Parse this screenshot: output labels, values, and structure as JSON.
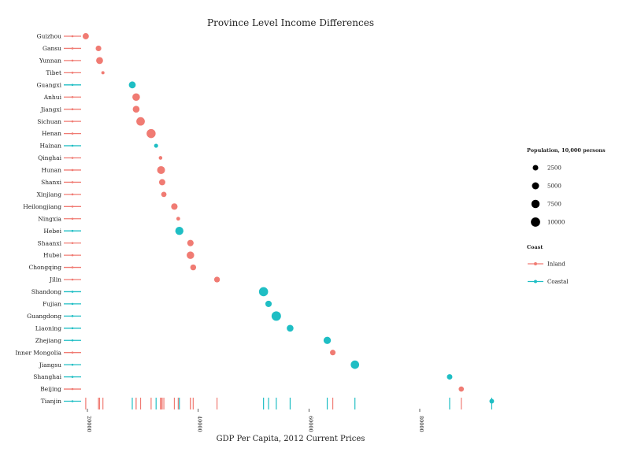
{
  "chart_data": {
    "type": "scatter",
    "title": "Province Level Income Differences",
    "xlabel": "GDP Per Capita, 2012 Current Prices",
    "ylabel": "",
    "xlim": [
      19000,
      89000
    ],
    "x_ticks": [
      20000,
      40000,
      60000,
      80000
    ],
    "x_tick_labels": [
      "20000",
      "40000",
      "60000",
      "80000"
    ],
    "colors": {
      "Inland": "#F07B73",
      "Coastal": "#1FBEC4"
    },
    "legend": {
      "size_title": "Population, 10,000 persons",
      "size_levels": [
        2500,
        5000,
        7500,
        10000
      ],
      "size_labels": [
        "2500",
        "5000",
        "7500",
        "10000"
      ],
      "color_title": "Coast",
      "color_labels": [
        "Inland",
        "Coastal"
      ],
      "placement": "right"
    },
    "provinces": [
      {
        "name": "Guizhou",
        "gdp": 19700,
        "pop": 3480,
        "coast": "Inland"
      },
      {
        "name": "Gansu",
        "gdp": 22000,
        "pop": 2580,
        "coast": "Inland"
      },
      {
        "name": "Yunnan",
        "gdp": 22200,
        "pop": 4660,
        "coast": "Inland"
      },
      {
        "name": "Tibet",
        "gdp": 22800,
        "pop": 310,
        "coast": "Inland"
      },
      {
        "name": "Guangxi",
        "gdp": 28100,
        "pop": 4680,
        "coast": "Coastal"
      },
      {
        "name": "Anhui",
        "gdp": 28800,
        "pop": 5990,
        "coast": "Inland"
      },
      {
        "name": "Jiangxi",
        "gdp": 28800,
        "pop": 4500,
        "coast": "Inland"
      },
      {
        "name": "Sichuan",
        "gdp": 29600,
        "pop": 8080,
        "coast": "Inland"
      },
      {
        "name": "Henan",
        "gdp": 31500,
        "pop": 9410,
        "coast": "Inland"
      },
      {
        "name": "Hainan",
        "gdp": 32400,
        "pop": 880,
        "coast": "Coastal"
      },
      {
        "name": "Qinghai",
        "gdp": 33200,
        "pop": 570,
        "coast": "Inland"
      },
      {
        "name": "Hunan",
        "gdp": 33300,
        "pop": 6640,
        "coast": "Inland"
      },
      {
        "name": "Shanxi",
        "gdp": 33500,
        "pop": 3610,
        "coast": "Inland"
      },
      {
        "name": "Xinjiang",
        "gdp": 33800,
        "pop": 2230,
        "coast": "Inland"
      },
      {
        "name": "Heilongjiang",
        "gdp": 35700,
        "pop": 3830,
        "coast": "Inland"
      },
      {
        "name": "Ningxia",
        "gdp": 36400,
        "pop": 650,
        "coast": "Inland"
      },
      {
        "name": "Hebei",
        "gdp": 36600,
        "pop": 7290,
        "coast": "Coastal"
      },
      {
        "name": "Shaanxi",
        "gdp": 38600,
        "pop": 3750,
        "coast": "Inland"
      },
      {
        "name": "Hubei",
        "gdp": 38600,
        "pop": 5780,
        "coast": "Inland"
      },
      {
        "name": "Chongqing",
        "gdp": 39100,
        "pop": 2950,
        "coast": "Inland"
      },
      {
        "name": "Jilin",
        "gdp": 43400,
        "pop": 2750,
        "coast": "Inland"
      },
      {
        "name": "Shandong",
        "gdp": 51800,
        "pop": 9690,
        "coast": "Coastal"
      },
      {
        "name": "Fujian",
        "gdp": 52700,
        "pop": 3750,
        "coast": "Coastal"
      },
      {
        "name": "Guangdong",
        "gdp": 54100,
        "pop": 10600,
        "coast": "Coastal"
      },
      {
        "name": "Liaoning",
        "gdp": 56600,
        "pop": 4390,
        "coast": "Coastal"
      },
      {
        "name": "Zhejiang",
        "gdp": 63300,
        "pop": 5480,
        "coast": "Coastal"
      },
      {
        "name": "Inner Mongolia",
        "gdp": 64300,
        "pop": 2490,
        "coast": "Inland"
      },
      {
        "name": "Jiangsu",
        "gdp": 68300,
        "pop": 7920,
        "coast": "Coastal"
      },
      {
        "name": "Shanghai",
        "gdp": 85400,
        "pop": 2380,
        "coast": "Coastal"
      },
      {
        "name": "Beijing",
        "gdp": 87500,
        "pop": 2070,
        "coast": "Inland"
      },
      {
        "name": "Tianjin",
        "gdp": 93000,
        "pop": 1410,
        "coast": "Coastal"
      }
    ]
  }
}
